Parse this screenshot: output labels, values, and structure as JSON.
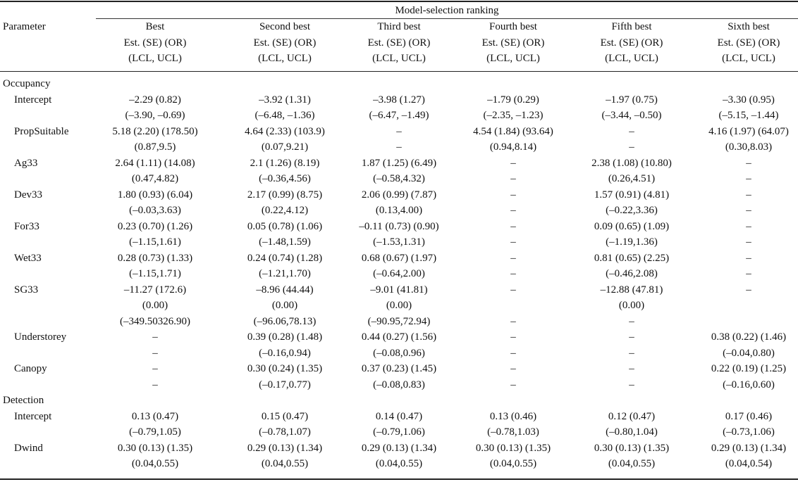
{
  "header": {
    "group_title": "Model-selection ranking",
    "param_label": "Parameter",
    "columns": [
      {
        "rank": "Best",
        "line2": "Est. (SE) (OR)",
        "line3": "(LCL, UCL)"
      },
      {
        "rank": "Second best",
        "line2": "Est. (SE) (OR)",
        "line3": "(LCL, UCL)"
      },
      {
        "rank": "Third best",
        "line2": "Est. (SE) (OR)",
        "line3": "(LCL, UCL)"
      },
      {
        "rank": "Fourth best",
        "line2": "Est. (SE) (OR)",
        "line3": "(LCL, UCL)"
      },
      {
        "rank": "Fifth best",
        "line2": "Est. (SE) (OR)",
        "line3": "(LCL, UCL)"
      },
      {
        "rank": "Sixth best",
        "line2": "Est. (SE) (OR)",
        "line3": "(LCL, UCL)"
      }
    ]
  },
  "sections": [
    {
      "label": "Occupancy"
    },
    {
      "label": "Detection"
    }
  ],
  "rows": [
    {
      "param": "",
      "section": "Occupancy",
      "cells": [
        "",
        "",
        "",
        "",
        "",
        ""
      ]
    },
    {
      "param": "Intercept",
      "cells": [
        "–2.29 (0.82)",
        "–3.92 (1.31)",
        "–3.98 (1.27)",
        "–1.79 (0.29)",
        "–1.97 (0.75)",
        "–3.30 (0.95)"
      ]
    },
    {
      "param": "",
      "cells": [
        "(–3.90, –0.69)",
        "(–6.48, –1.36)",
        "(–6.47, –1.49)",
        "(–2.35, –1.23)",
        "(–3.44, –0.50)",
        "(–5.15, –1.44)"
      ]
    },
    {
      "param": "PropSuitable",
      "cells": [
        "5.18 (2.20) (178.50)",
        "4.64 (2.33) (103.9)",
        "–",
        "4.54 (1.84) (93.64)",
        "–",
        "4.16 (1.97) (64.07)"
      ]
    },
    {
      "param": "",
      "cells": [
        "(0.87,9.5)",
        "(0.07,9.21)",
        "–",
        "(0.94,8.14)",
        "–",
        "(0.30,8.03)"
      ]
    },
    {
      "param": "Ag33",
      "cells": [
        "2.64 (1.11) (14.08)",
        "2.1 (1.26) (8.19)",
        "1.87 (1.25) (6.49)",
        "–",
        "2.38 (1.08) (10.80)",
        "–"
      ]
    },
    {
      "param": "",
      "cells": [
        "(0.47,4.82)",
        "(–0.36,4.56)",
        "(–0.58,4.32)",
        "–",
        "(0.26,4.51)",
        "–"
      ]
    },
    {
      "param": "Dev33",
      "cells": [
        "1.80 (0.93) (6.04)",
        "2.17 (0.99) (8.75)",
        "2.06 (0.99) (7.87)",
        "–",
        "1.57 (0.91) (4.81)",
        "–"
      ]
    },
    {
      "param": "",
      "cells": [
        "(–0.03,3.63)",
        "(0.22,4.12)",
        "(0.13,4.00)",
        "–",
        "(–0.22,3.36)",
        "–"
      ]
    },
    {
      "param": "For33",
      "cells": [
        "0.23 (0.70) (1.26)",
        "0.05 (0.78) (1.06)",
        "–0.11 (0.73) (0.90)",
        "–",
        "0.09 (0.65) (1.09)",
        "–"
      ]
    },
    {
      "param": "",
      "cells": [
        "(–1.15,1.61)",
        "(–1.48,1.59)",
        "(–1.53,1.31)",
        "–",
        "(–1.19,1.36)",
        "–"
      ]
    },
    {
      "param": "Wet33",
      "cells": [
        "0.28 (0.73) (1.33)",
        "0.24 (0.74) (1.28)",
        "0.68 (0.67) (1.97)",
        "–",
        "0.81 (0.65) (2.25)",
        "–"
      ]
    },
    {
      "param": "",
      "cells": [
        "(–1.15,1.71)",
        "(–1.21,1.70)",
        "(–0.64,2.00)",
        "–",
        "(–0.46,2.08)",
        "–"
      ]
    },
    {
      "param": "SG33",
      "cells": [
        "–11.27 (172.6)",
        "–8.96 (44.44)",
        "–9.01 (41.81)",
        "–",
        "–12.88 (47.81)",
        "–"
      ]
    },
    {
      "param": "",
      "cells": [
        "(0.00)",
        "(0.00)",
        "(0.00)",
        "",
        "(0.00)",
        ""
      ]
    },
    {
      "param": "",
      "cells": [
        "(–349.50326.90)",
        "(–96.06,78.13)",
        "(–90.95,72.94)",
        "–",
        "–",
        ""
      ]
    },
    {
      "param": "Understorey",
      "cells": [
        "–",
        "0.39 (0.28) (1.48)",
        "0.44 (0.27) (1.56)",
        "–",
        "–",
        "0.38 (0.22) (1.46)"
      ]
    },
    {
      "param": "",
      "cells": [
        "–",
        "(–0.16,0.94)",
        "(–0.08,0.96)",
        "–",
        "–",
        "(–0.04,0.80)"
      ]
    },
    {
      "param": "Canopy",
      "cells": [
        "–",
        "0.30 (0.24) (1.35)",
        "0.37 (0.23) (1.45)",
        "–",
        "–",
        "0.22 (0.19) (1.25)"
      ]
    },
    {
      "param": "",
      "cells": [
        "–",
        "(–0.17,0.77)",
        "(–0.08,0.83)",
        "–",
        "–",
        "(–0.16,0.60)"
      ]
    },
    {
      "param": "",
      "section": "Detection",
      "cells": [
        "",
        "",
        "",
        "",
        "",
        ""
      ]
    },
    {
      "param": "Intercept",
      "cells": [
        "0.13 (0.47)",
        "0.15 (0.47)",
        "0.14 (0.47)",
        "0.13 (0.46)",
        "0.12 (0.47)",
        "0.17 (0.46)"
      ]
    },
    {
      "param": "",
      "cells": [
        "(–0.79,1.05)",
        "(–0.78,1.07)",
        "(–0.79,1.06)",
        "(–0.78,1.03)",
        "(–0.80,1.04)",
        "(–0.73,1.06)"
      ]
    },
    {
      "param": "Dwind",
      "cells": [
        "0.30 (0.13) (1.35)",
        "0.29 (0.13) (1.34)",
        "0.29 (0.13) (1.34)",
        "0.30 (0.13) (1.35)",
        "0.30 (0.13) (1.35)",
        "0.29 (0.13) (1.34)"
      ]
    },
    {
      "param": "",
      "cells": [
        "(0.04,0.55)",
        "(0.04,0.55)",
        "(0.04,0.55)",
        "(0.04,0.55)",
        "(0.04,0.55)",
        "(0.04,0.54)"
      ]
    }
  ]
}
